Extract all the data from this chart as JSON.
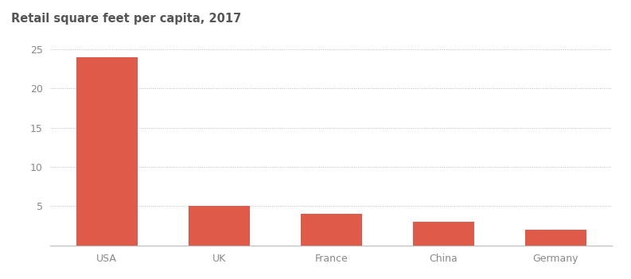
{
  "categories": [
    "USA",
    "UK",
    "France",
    "China",
    "Germany"
  ],
  "values": [
    24,
    5,
    4,
    3,
    2
  ],
  "bar_color": "#e05a4a",
  "title": "Retail square feet per capita, 2017",
  "title_fontsize": 10.5,
  "title_color": "#555555",
  "ylim": [
    0,
    27
  ],
  "yticks": [
    0,
    5,
    10,
    15,
    20,
    25
  ],
  "background_color": "#ffffff",
  "grid_color": "#bbbbbb",
  "tick_color": "#888888",
  "tick_fontsize": 9,
  "bar_width": 0.55
}
